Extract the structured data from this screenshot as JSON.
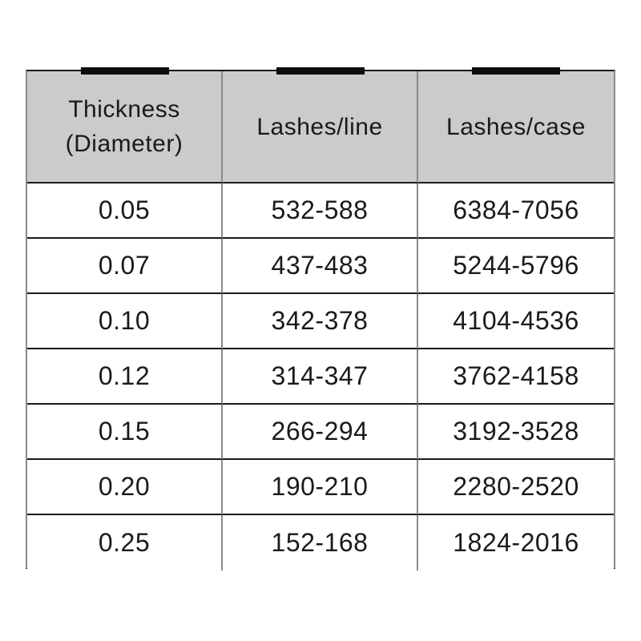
{
  "colors": {
    "header_bg": "#cbcbcb",
    "horizontal_border": "#1a1a1a",
    "vertical_border": "#8a8a8a",
    "marker_bar": "#0d0d0d",
    "text": "#1a1a1a",
    "page_bg": "#ffffff"
  },
  "table": {
    "columns": [
      {
        "label": "Thickness (Diameter)",
        "line1": "Thickness",
        "line2": "(Diameter)"
      },
      {
        "label": "Lashes/line"
      },
      {
        "label": "Lashes/case"
      }
    ],
    "rows": [
      {
        "thickness": "0.05",
        "lashes_per_line": "532-588",
        "lashes_per_case": "6384-7056"
      },
      {
        "thickness": "0.07",
        "lashes_per_line": "437-483",
        "lashes_per_case": "5244-5796"
      },
      {
        "thickness": "0.10",
        "lashes_per_line": "342-378",
        "lashes_per_case": "4104-4536"
      },
      {
        "thickness": "0.12",
        "lashes_per_line": "314-347",
        "lashes_per_case": "3762-4158"
      },
      {
        "thickness": "0.15",
        "lashes_per_line": "266-294",
        "lashes_per_case": "3192-3528"
      },
      {
        "thickness": "0.20",
        "lashes_per_line": "190-210",
        "lashes_per_case": "2280-2520"
      },
      {
        "thickness": "0.25",
        "lashes_per_line": "152-168",
        "lashes_per_case": "1824-2016"
      }
    ]
  },
  "chart_data": {
    "type": "table",
    "title": "",
    "columns": [
      "Thickness (Diameter)",
      "Lashes/line",
      "Lashes/case"
    ],
    "rows": [
      [
        "0.05",
        "532-588",
        "6384-7056"
      ],
      [
        "0.07",
        "437-483",
        "5244-5796"
      ],
      [
        "0.10",
        "342-378",
        "4104-4536"
      ],
      [
        "0.12",
        "314-347",
        "3762-4158"
      ],
      [
        "0.15",
        "266-294",
        "3192-3528"
      ],
      [
        "0.20",
        "190-210",
        "2280-2520"
      ],
      [
        "0.25",
        "152-168",
        "1824-2016"
      ]
    ]
  }
}
